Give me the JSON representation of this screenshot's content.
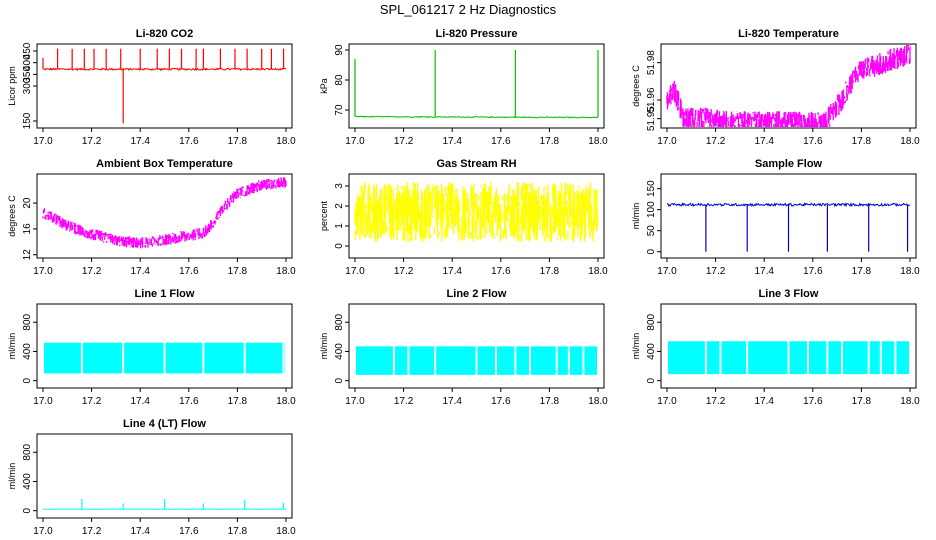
{
  "title": "SPL_061217  2 Hz Diagnostics",
  "chart_data": [
    {
      "id": "co2",
      "type": "line",
      "title": "Li-820 CO2",
      "ylabel": "Licor ppm",
      "color": "#ff0000",
      "xlim": [
        17.0,
        18.0
      ],
      "xticks": [
        "17.0",
        "17.2",
        "17.4",
        "17.6",
        "17.8",
        "18.0"
      ],
      "ylim": [
        120,
        480
      ],
      "yticks": [
        150,
        300,
        350,
        400,
        450
      ],
      "base": [
        [
          17.0,
          372
        ],
        [
          18.0,
          372
        ]
      ],
      "noise": 8,
      "spikes": [
        {
          "x": 17.0,
          "y": 420
        },
        {
          "x": 17.06,
          "y": 460
        },
        {
          "x": 17.12,
          "y": 460
        },
        {
          "x": 17.17,
          "y": 460
        },
        {
          "x": 17.21,
          "y": 460
        },
        {
          "x": 17.26,
          "y": 460
        },
        {
          "x": 17.32,
          "y": 460
        },
        {
          "x": 17.33,
          "y": 140
        },
        {
          "x": 17.4,
          "y": 460
        },
        {
          "x": 17.47,
          "y": 460
        },
        {
          "x": 17.52,
          "y": 460
        },
        {
          "x": 17.57,
          "y": 460
        },
        {
          "x": 17.63,
          "y": 460
        },
        {
          "x": 17.66,
          "y": 460
        },
        {
          "x": 17.73,
          "y": 460
        },
        {
          "x": 17.79,
          "y": 460
        },
        {
          "x": 17.84,
          "y": 460
        },
        {
          "x": 17.9,
          "y": 460
        },
        {
          "x": 17.94,
          "y": 460
        },
        {
          "x": 17.99,
          "y": 460
        }
      ]
    },
    {
      "id": "pressure",
      "type": "line",
      "title": "Li-820 Pressure",
      "ylabel": "kPa",
      "color": "#00c000",
      "xlim": [
        17.0,
        18.0
      ],
      "xticks": [
        "17.0",
        "17.2",
        "17.4",
        "17.6",
        "17.8",
        "18.0"
      ],
      "ylim": [
        64,
        92
      ],
      "yticks": [
        70,
        80,
        90
      ],
      "base": [
        [
          17.0,
          67.8
        ],
        [
          18.0,
          67.5
        ]
      ],
      "noise": 0.3,
      "spikes": [
        {
          "x": 17.0,
          "y": 87
        },
        {
          "x": 17.33,
          "y": 90
        },
        {
          "x": 17.66,
          "y": 90
        },
        {
          "x": 18.0,
          "y": 90
        }
      ]
    },
    {
      "id": "temperature",
      "type": "band",
      "title": "Li-820 Temperature",
      "ylabel": "degrees C",
      "color": "#ff00ff",
      "xlim": [
        17.0,
        18.0
      ],
      "xticks": [
        "17.0",
        "17.2",
        "17.4",
        "17.6",
        "17.8",
        "18.0"
      ],
      "ylim": [
        51.945,
        51.99
      ],
      "yticks": [
        51.95,
        51.96,
        51.98
      ],
      "base": [
        [
          17.0,
          51.96
        ],
        [
          17.03,
          51.965
        ],
        [
          17.07,
          51.95
        ],
        [
          17.15,
          51.95
        ],
        [
          17.25,
          51.948
        ],
        [
          17.65,
          51.948
        ],
        [
          17.72,
          51.96
        ],
        [
          17.78,
          51.975
        ],
        [
          18.0,
          51.985
        ]
      ],
      "noise": 0.006,
      "spikes": []
    },
    {
      "id": "ambient",
      "type": "band",
      "title": "Ambient Box Temperature",
      "ylabel": "degrees C",
      "color": "#ff00ff",
      "xlim": [
        17.0,
        18.0
      ],
      "xticks": [
        "17.0",
        "17.2",
        "17.4",
        "17.6",
        "17.8",
        "18.0"
      ],
      "ylim": [
        11.5,
        24.5
      ],
      "yticks": [
        12,
        16,
        20
      ],
      "base": [
        [
          17.0,
          18.5
        ],
        [
          17.1,
          16.5
        ],
        [
          17.2,
          15.2
        ],
        [
          17.3,
          14.2
        ],
        [
          17.4,
          13.8
        ],
        [
          17.5,
          14.3
        ],
        [
          17.6,
          15.0
        ],
        [
          17.66,
          15.3
        ],
        [
          17.7,
          17
        ],
        [
          17.75,
          19.5
        ],
        [
          17.8,
          21.5
        ],
        [
          17.9,
          22.8
        ],
        [
          18.0,
          23.2
        ]
      ],
      "noise": 0.9,
      "spikes": []
    },
    {
      "id": "rh",
      "type": "band",
      "title": "Gas Stream RH",
      "ylabel": "percent",
      "color": "#ffff00",
      "xlim": [
        17.0,
        18.0
      ],
      "xticks": [
        "17.0",
        "17.2",
        "17.4",
        "17.6",
        "17.8",
        "18.0"
      ],
      "ylim": [
        -0.6,
        3.6
      ],
      "yticks": [
        0,
        1,
        2,
        3
      ],
      "base": [
        [
          17.0,
          1.7
        ],
        [
          18.0,
          1.7
        ]
      ],
      "noise": 1.5,
      "spikes": []
    },
    {
      "id": "sample",
      "type": "line",
      "title": "Sample Flow",
      "ylabel": "ml/min",
      "color": "#0000c8",
      "xlim": [
        17.0,
        18.0
      ],
      "xticks": [
        "17.0",
        "17.2",
        "17.4",
        "17.6",
        "17.8",
        "18.0"
      ],
      "ylim": [
        -15,
        185
      ],
      "yticks": [
        0,
        50,
        100,
        150
      ],
      "base": [
        [
          17.0,
          112
        ],
        [
          18.0,
          112
        ]
      ],
      "noise": 6,
      "spikes": [
        {
          "x": 17.16,
          "y": 0
        },
        {
          "x": 17.33,
          "y": 0
        },
        {
          "x": 17.5,
          "y": 0
        },
        {
          "x": 17.66,
          "y": 0
        },
        {
          "x": 17.83,
          "y": 0
        },
        {
          "x": 17.99,
          "y": 0
        }
      ]
    },
    {
      "id": "line1",
      "type": "block",
      "title": "Line 1 Flow",
      "ylabel": "ml/min",
      "color": "#00ffff",
      "xlim": [
        17.0,
        18.0
      ],
      "xticks": [
        "17.0",
        "17.2",
        "17.4",
        "17.6",
        "17.8",
        "18.0"
      ],
      "ylim": [
        -100,
        1050
      ],
      "yticks": [
        0,
        400,
        800
      ],
      "lo": 100,
      "hi": 520,
      "gaps": [
        17.16,
        17.33,
        17.5,
        17.66,
        17.83,
        17.99
      ],
      "spikes": []
    },
    {
      "id": "line2",
      "type": "block",
      "title": "Line 2 Flow",
      "ylabel": "ml/min",
      "color": "#00ffff",
      "xlim": [
        17.0,
        18.0
      ],
      "xticks": [
        "17.0",
        "17.2",
        "17.4",
        "17.6",
        "17.8",
        "18.0"
      ],
      "ylim": [
        -100,
        1050
      ],
      "yticks": [
        0,
        400,
        800
      ],
      "lo": 80,
      "hi": 470,
      "gaps": [
        17.16,
        17.22,
        17.33,
        17.5,
        17.58,
        17.66,
        17.72,
        17.83,
        17.88,
        17.94
      ],
      "spikes": []
    },
    {
      "id": "line3",
      "type": "block",
      "title": "Line 3 Flow",
      "ylabel": "ml/min",
      "color": "#00ffff",
      "xlim": [
        17.0,
        18.0
      ],
      "xticks": [
        "17.0",
        "17.2",
        "17.4",
        "17.6",
        "17.8",
        "18.0"
      ],
      "ylim": [
        -100,
        1050
      ],
      "yticks": [
        0,
        400,
        800
      ],
      "lo": 90,
      "hi": 540,
      "gaps": [
        17.16,
        17.22,
        17.33,
        17.5,
        17.58,
        17.66,
        17.72,
        17.83,
        17.88,
        17.94
      ],
      "spikes": []
    },
    {
      "id": "line4",
      "type": "line",
      "title": "Line 4 (LT) Flow",
      "ylabel": "ml/min",
      "color": "#00ffff",
      "xlim": [
        17.0,
        18.0
      ],
      "xticks": [
        "17.0",
        "17.2",
        "17.4",
        "17.6",
        "17.8",
        "18.0"
      ],
      "ylim": [
        -100,
        1050
      ],
      "yticks": [
        0,
        400,
        800
      ],
      "base": [
        [
          17.0,
          20
        ],
        [
          18.0,
          20
        ]
      ],
      "noise": 3,
      "spikes": [
        {
          "x": 17.16,
          "y": 160
        },
        {
          "x": 17.33,
          "y": 100
        },
        {
          "x": 17.5,
          "y": 160
        },
        {
          "x": 17.66,
          "y": 100
        },
        {
          "x": 17.83,
          "y": 150
        },
        {
          "x": 17.99,
          "y": 110
        }
      ]
    }
  ]
}
